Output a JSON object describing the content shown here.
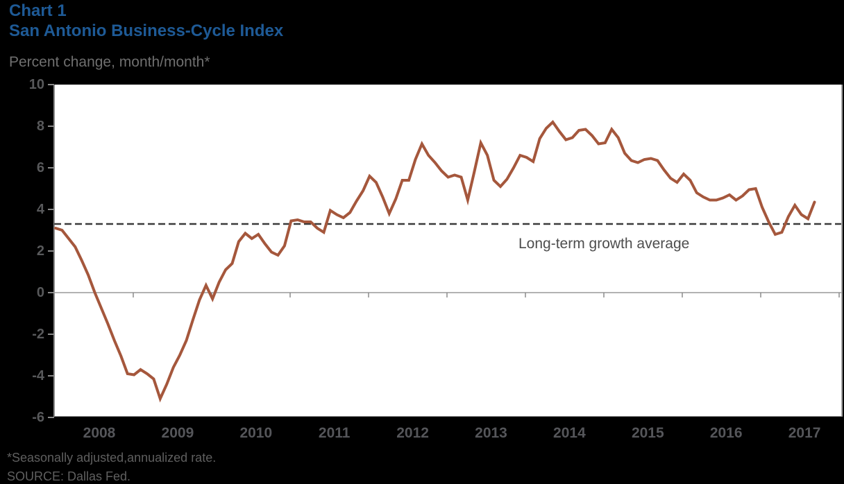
{
  "header": {
    "chart_label": "Chart 1",
    "title": "San Antonio Business-Cycle Index",
    "y_axis_note": "Percent change, month/month*"
  },
  "annotation": {
    "reference_line_label": "Long-term growth average"
  },
  "footnotes": {
    "line1": "*Seasonally adjusted,annualized rate.",
    "line2": "SOURCE: Dallas Fed."
  },
  "colors": {
    "page_bg": "#000000",
    "plot_bg": "#FFFFFF",
    "title_blue": "#1E5A96",
    "line_brown": "#A5573C",
    "axis_gray": "#8A8A8A",
    "zero_line_gray": "#999999",
    "dashed_gray": "#3A3A3A",
    "tick_text_gray": "#58595B"
  },
  "chart_data": {
    "type": "line",
    "title": "San Antonio Business-Cycle Index",
    "ylabel": "Percent change, month/month*",
    "ylim": [
      -6,
      10
    ],
    "yticks": [
      10,
      8,
      6,
      4,
      2,
      0,
      -2,
      -4,
      -6
    ],
    "x_year_labels": [
      "2008",
      "2009",
      "2010",
      "2011",
      "2012",
      "2013",
      "2014",
      "2015",
      "2016",
      "2017"
    ],
    "frequency": "monthly",
    "x_range_note": "monthly values from mid-2007 through early 2017, read from plot",
    "grid": "zero line only",
    "legend": "none",
    "reference_line": {
      "value": 3.3,
      "style": "dashed",
      "label": "Long-term growth average"
    },
    "series": [
      {
        "name": "San Antonio Business-Cycle Index",
        "values": [
          3.1,
          3.0,
          2.6,
          2.2,
          1.55,
          0.85,
          0.0,
          -0.75,
          -1.5,
          -2.3,
          -3.05,
          -3.9,
          -3.95,
          -3.7,
          -3.9,
          -4.15,
          -5.1,
          -4.4,
          -3.6,
          -3.0,
          -2.3,
          -1.3,
          -0.35,
          0.35,
          -0.3,
          0.5,
          1.1,
          1.4,
          2.45,
          2.85,
          2.6,
          2.8,
          2.35,
          1.95,
          1.8,
          2.25,
          3.45,
          3.5,
          3.4,
          3.4,
          3.1,
          2.9,
          3.95,
          3.75,
          3.6,
          3.85,
          4.4,
          4.9,
          5.6,
          5.3,
          4.6,
          3.8,
          4.5,
          5.4,
          5.4,
          6.4,
          7.15,
          6.6,
          6.25,
          5.85,
          5.55,
          5.65,
          5.55,
          4.45,
          5.8,
          7.2,
          6.6,
          5.4,
          5.1,
          5.45,
          6.0,
          6.6,
          6.5,
          6.3,
          7.4,
          7.9,
          8.2,
          7.75,
          7.35,
          7.45,
          7.8,
          7.85,
          7.55,
          7.15,
          7.2,
          7.85,
          7.45,
          6.7,
          6.35,
          6.25,
          6.4,
          6.45,
          6.35,
          5.9,
          5.5,
          5.3,
          5.7,
          5.4,
          4.8,
          4.6,
          4.45,
          4.45,
          4.55,
          4.7,
          4.45,
          4.65,
          4.95,
          5.0,
          4.1,
          3.4,
          2.8,
          2.9,
          3.65,
          4.2,
          3.75,
          3.55,
          4.35
        ]
      }
    ]
  }
}
